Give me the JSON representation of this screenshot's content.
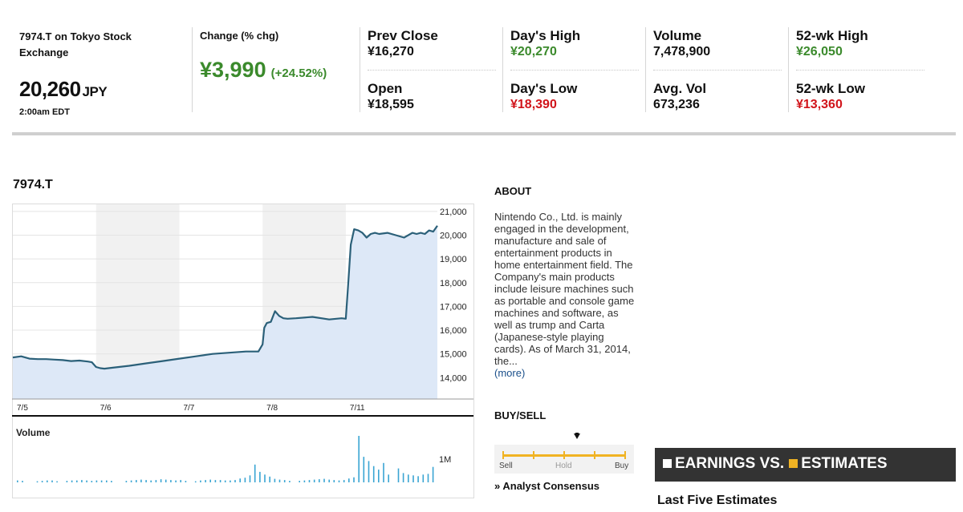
{
  "quote": {
    "symbol_line": "7974.T on Tokyo Stock Exchange",
    "price": "20,260",
    "currency": "JPY",
    "time": "2:00am EDT",
    "change_label": "Change (% chg)",
    "change_value": "¥3,990",
    "change_pct": "(+24.52%)"
  },
  "stats": {
    "prev_close": {
      "label": "Prev Close",
      "value": "¥16,270"
    },
    "open": {
      "label": "Open",
      "value": "¥18,595"
    },
    "day_high": {
      "label": "Day's High",
      "value": "¥20,270"
    },
    "day_low": {
      "label": "Day's Low",
      "value": "¥18,390"
    },
    "volume": {
      "label": "Volume",
      "value": "7,478,900"
    },
    "avg_vol": {
      "label": "Avg. Vol",
      "value": "673,236"
    },
    "wk52_high": {
      "label": "52-wk High",
      "value": "¥26,050"
    },
    "wk52_low": {
      "label": "52-wk Low",
      "value": "¥13,360"
    }
  },
  "colors": {
    "up": "#3b8a2c",
    "down": "#d1141b",
    "line": "#2b6079",
    "area": "#dde8f7",
    "volume": "#3aa5d3",
    "accent": "#f0b323"
  },
  "chart_data": {
    "type": "area",
    "title": "7974.T",
    "x_ticks": [
      "7/5",
      "7/6",
      "7/7",
      "7/8",
      "7/11"
    ],
    "y_ticks": [
      "21,000",
      "20,000",
      "19,000",
      "18,000",
      "17,000",
      "16,000",
      "15,000",
      "14,000"
    ],
    "ylim": [
      13100,
      21300
    ],
    "x": [
      0,
      0.1,
      0.2,
      0.3,
      0.4,
      0.5,
      0.6,
      0.7,
      0.8,
      0.9,
      0.95,
      1,
      1.05,
      1.1,
      1.2,
      1.4,
      1.6,
      1.8,
      2,
      2.2,
      2.4,
      2.6,
      2.8,
      2.95,
      3,
      3.02,
      3.05,
      3.1,
      3.15,
      3.2,
      3.25,
      3.3,
      3.4,
      3.6,
      3.8,
      3.95,
      4,
      4.03,
      4.06,
      4.1,
      4.15,
      4.2,
      4.25,
      4.3,
      4.35,
      4.4,
      4.5,
      4.6,
      4.7,
      4.8,
      4.85,
      4.9,
      4.95,
      5,
      5.05,
      5.1
    ],
    "values": [
      14850,
      14900,
      14800,
      14780,
      14780,
      14760,
      14740,
      14700,
      14720,
      14680,
      14650,
      14450,
      14400,
      14380,
      14420,
      14500,
      14600,
      14700,
      14800,
      14900,
      15000,
      15050,
      15100,
      15100,
      15400,
      16100,
      16300,
      16350,
      16800,
      16600,
      16500,
      16480,
      16500,
      16560,
      16450,
      16500,
      16480,
      18000,
      19600,
      20250,
      20200,
      20100,
      19900,
      20050,
      20100,
      20050,
      20100,
      20000,
      19900,
      20100,
      20050,
      20100,
      20050,
      20200,
      20150,
      20400
    ],
    "volume": {
      "label": "Volume",
      "tick": "1M",
      "values": [
        0.05,
        0.04,
        0,
        0,
        0.03,
        0.04,
        0.05,
        0.05,
        0.03,
        0,
        0.04,
        0.05,
        0.05,
        0.06,
        0.05,
        0.04,
        0.05,
        0.05,
        0.05,
        0.04,
        0,
        0,
        0.04,
        0.05,
        0.06,
        0.07,
        0.06,
        0.05,
        0.06,
        0.08,
        0.07,
        0.06,
        0.05,
        0.06,
        0.04,
        0,
        0.03,
        0.05,
        0.06,
        0.07,
        0.06,
        0.06,
        0.05,
        0.05,
        0.06,
        0.1,
        0.12,
        0.18,
        0.46,
        0.27,
        0.2,
        0.15,
        0.09,
        0.07,
        0.06,
        0.04,
        0,
        0.04,
        0.05,
        0.06,
        0.07,
        0.08,
        0.09,
        0.07,
        0.06,
        0.05,
        0.06,
        0.1,
        0.13,
        1.2,
        0.66,
        0.55,
        0.42,
        0.33,
        0.5,
        0.2,
        0,
        0.36,
        0.24,
        0.2,
        0.18,
        0.16,
        0.2,
        0.22,
        0.4
      ]
    }
  },
  "about": {
    "title": "ABOUT",
    "text": "Nintendo Co., Ltd. is mainly engaged in the development, manufacture and sale of entertainment products in home entertainment field. The Company's main products include leisure machines such as portable and console game machines and software, as well as trump and Carta (Japanese-style playing cards). As of March 31, 2014, the...",
    "more": "(more)"
  },
  "buysell": {
    "title": "BUY/SELL",
    "sell": "Sell",
    "hold": "Hold",
    "buy": "Buy",
    "analyst": "» Analyst Consensus"
  },
  "earnings": {
    "part1": "EARNINGS VS.",
    "part2": "ESTIMATES",
    "subtitle": "Last Five Estimates"
  }
}
